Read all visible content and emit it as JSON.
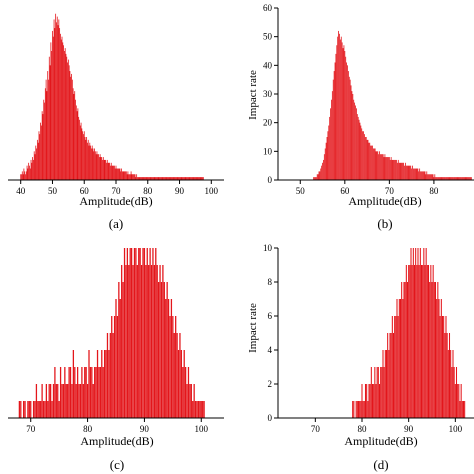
{
  "colors": {
    "bar": "#e3161b",
    "axis": "#000000"
  },
  "chart_data": [
    {
      "panel": "a",
      "type": "bar",
      "caption": "(a)",
      "xlabel": "Amplitude(dB)",
      "ylabel": "",
      "xlim": [
        36,
        104
      ],
      "ylim": [
        0,
        60
      ],
      "xticks": [
        40,
        50,
        60,
        70,
        80,
        90,
        100
      ],
      "yticks": [],
      "x_start": 40,
      "x_step": 0.25,
      "values": [
        2,
        2,
        3,
        2,
        4,
        3,
        2,
        3,
        5,
        4,
        6,
        5,
        4,
        7,
        6,
        8,
        7,
        10,
        9,
        12,
        11,
        14,
        13,
        17,
        16,
        20,
        19,
        24,
        23,
        28,
        27,
        32,
        35,
        31,
        38,
        35,
        43,
        40,
        48,
        45,
        52,
        50,
        56,
        53,
        58,
        55,
        57,
        54,
        56,
        53,
        51,
        49,
        50,
        48,
        47,
        45,
        46,
        44,
        43,
        41,
        42,
        40,
        38,
        36,
        37,
        35,
        32,
        30,
        31,
        28,
        26,
        24,
        25,
        22,
        21,
        19,
        20,
        18,
        17,
        16,
        17,
        15,
        14,
        15,
        13,
        14,
        12,
        13,
        12,
        11,
        12,
        11,
        10,
        11,
        10,
        9,
        10,
        9,
        9,
        8,
        9,
        8,
        8,
        7,
        8,
        7,
        7,
        7,
        6,
        7,
        6,
        6,
        6,
        5,
        6,
        5,
        5,
        5,
        5,
        4,
        5,
        4,
        4,
        4,
        4,
        4,
        3,
        4,
        3,
        3,
        3,
        3,
        3,
        3,
        2,
        3,
        2,
        2,
        2,
        3,
        2,
        2,
        2,
        2,
        2,
        1,
        2,
        1,
        1,
        1,
        1,
        1,
        1,
        1,
        1,
        1,
        1,
        1,
        1,
        1,
        1,
        1,
        1,
        1,
        1,
        1,
        1,
        1,
        1,
        1,
        1,
        1,
        1,
        1,
        1,
        1,
        1,
        1,
        1,
        1,
        1,
        1,
        1,
        1,
        1,
        1,
        1,
        1,
        1,
        1,
        1,
        1,
        1,
        1,
        1,
        1,
        1,
        1,
        1,
        1,
        1,
        1,
        1,
        1,
        1,
        1,
        1,
        1,
        1,
        1,
        1,
        1,
        1,
        1,
        1,
        1,
        1,
        1,
        1,
        1,
        1,
        1,
        1,
        1,
        1,
        1,
        1,
        1,
        1,
        1,
        1
      ]
    },
    {
      "panel": "b",
      "type": "bar",
      "caption": "(b)",
      "xlabel": "Amplitude(dB)",
      "ylabel": "Impact rate",
      "xlim": [
        45,
        89
      ],
      "ylim": [
        0,
        60
      ],
      "xticks": [
        50,
        60,
        70,
        80
      ],
      "yticks": [
        0,
        10,
        20,
        30,
        40,
        50,
        60
      ],
      "x_start": 53,
      "x_step": 0.2,
      "values": [
        1,
        1,
        1,
        1,
        2,
        2,
        3,
        3,
        4,
        5,
        6,
        7,
        9,
        11,
        13,
        15,
        17,
        19,
        22,
        25,
        28,
        31,
        35,
        38,
        41,
        44,
        47,
        50,
        52,
        51,
        49,
        50,
        48,
        46,
        47,
        45,
        43,
        41,
        40,
        38,
        36,
        35,
        33,
        31,
        30,
        28,
        27,
        26,
        25,
        23,
        22,
        21,
        20,
        19,
        18,
        17,
        17,
        16,
        15,
        15,
        14,
        14,
        13,
        13,
        12,
        12,
        12,
        11,
        11,
        11,
        10,
        10,
        10,
        9,
        10,
        9,
        9,
        9,
        9,
        8,
        9,
        8,
        8,
        8,
        8,
        8,
        7,
        8,
        7,
        7,
        7,
        7,
        7,
        7,
        6,
        7,
        6,
        6,
        6,
        6,
        6,
        6,
        5,
        6,
        5,
        5,
        5,
        5,
        5,
        5,
        4,
        5,
        4,
        4,
        4,
        4,
        4,
        4,
        3,
        4,
        3,
        3,
        3,
        3,
        3,
        3,
        2,
        3,
        2,
        2,
        2,
        2,
        2,
        2,
        2,
        1,
        2,
        1,
        1,
        1,
        1,
        1,
        1,
        1,
        1,
        1,
        1,
        1,
        1,
        1,
        1,
        1,
        1,
        1,
        1,
        1,
        1,
        1,
        1,
        1,
        1,
        1,
        1,
        1,
        1,
        1,
        1,
        1,
        1,
        1,
        1,
        1,
        1,
        1,
        1,
        1,
        1,
        1
      ]
    },
    {
      "panel": "c",
      "type": "bar",
      "caption": "(c)",
      "xlabel": "Amplitude(dB)",
      "ylabel": "",
      "xlim": [
        66,
        104
      ],
      "ylim": [
        0,
        10
      ],
      "xticks": [
        70,
        80,
        90,
        100
      ],
      "yticks": [],
      "x_start": 68,
      "x_step": 0.25,
      "values": [
        1,
        1,
        0,
        1,
        1,
        0,
        1,
        1,
        1,
        0,
        1,
        1,
        2,
        1,
        1,
        1,
        2,
        1,
        1,
        2,
        1,
        2,
        2,
        1,
        2,
        3,
        2,
        2,
        1,
        3,
        2,
        2,
        3,
        2,
        2,
        3,
        3,
        2,
        4,
        3,
        2,
        3,
        2,
        2,
        3,
        2,
        3,
        3,
        2,
        4,
        3,
        3,
        2,
        3,
        3,
        4,
        3,
        3,
        4,
        3,
        4,
        4,
        5,
        4,
        5,
        6,
        5,
        6,
        7,
        6,
        8,
        7,
        9,
        8,
        10,
        9,
        10,
        9,
        10,
        10,
        9,
        10,
        10,
        9,
        10,
        10,
        9,
        10,
        10,
        9,
        10,
        9,
        10,
        9,
        10,
        9,
        10,
        9,
        8,
        9,
        8,
        9,
        8,
        7,
        8,
        7,
        6,
        7,
        6,
        5,
        6,
        5,
        4,
        5,
        4,
        3,
        4,
        3,
        2,
        3,
        2,
        2,
        1,
        2,
        1,
        1,
        1,
        1,
        1,
        1,
        1
      ]
    },
    {
      "panel": "d",
      "type": "bar",
      "caption": "(d)",
      "xlabel": "Amplitude(dB)",
      "ylabel": "Impact rate",
      "xlim": [
        62,
        104
      ],
      "ylim": [
        0,
        10
      ],
      "xticks": [
        70,
        80,
        90,
        100
      ],
      "yticks": [
        0,
        2,
        4,
        6,
        8,
        10
      ],
      "x_start": 78,
      "x_step": 0.25,
      "values": [
        1,
        1,
        0,
        1,
        1,
        1,
        1,
        1,
        2,
        1,
        1,
        2,
        2,
        1,
        2,
        2,
        3,
        2,
        2,
        3,
        2,
        3,
        3,
        2,
        3,
        3,
        4,
        3,
        4,
        4,
        5,
        4,
        5,
        5,
        6,
        5,
        6,
        6,
        7,
        6,
        7,
        7,
        8,
        7,
        8,
        8,
        9,
        8,
        9,
        9,
        10,
        9,
        10,
        9,
        10,
        9,
        10,
        9,
        10,
        9,
        9,
        10,
        9,
        10,
        9,
        9,
        8,
        9,
        8,
        9,
        8,
        8,
        7,
        8,
        7,
        6,
        7,
        6,
        6,
        5,
        6,
        5,
        4,
        5,
        4,
        3,
        4,
        3,
        2,
        3,
        2,
        2,
        1,
        2,
        1,
        1,
        1
      ]
    }
  ]
}
